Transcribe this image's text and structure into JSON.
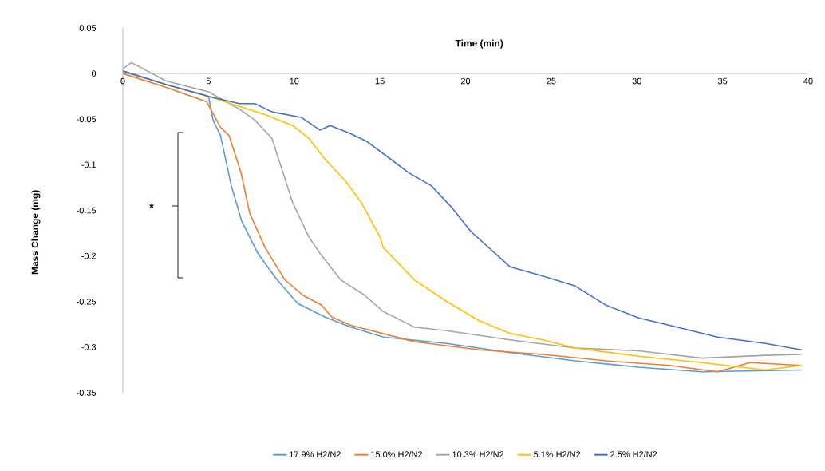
{
  "chart_data": {
    "type": "line",
    "xlabel": "Time (min)",
    "ylabel": "Mass Change (mg)",
    "xlim": [
      0,
      40
    ],
    "ylim": [
      -0.35,
      0.05
    ],
    "xticks": [
      0,
      5,
      10,
      15,
      20,
      25,
      30,
      35,
      40
    ],
    "yticks": [
      0.05,
      0,
      -0.05,
      -0.1,
      -0.15,
      -0.2,
      -0.25,
      -0.3,
      -0.35
    ],
    "grid": false,
    "legend": "bottom",
    "marker": "none",
    "line_style": "solid",
    "annotations": [
      "*"
    ],
    "series": [
      {
        "name": "17.9% H2/N2",
        "color": "#5b9bd5",
        "x": [
          0,
          2.5,
          5,
          5.26,
          5.7,
          6.33,
          6.94,
          7.87,
          8.99,
          10.2,
          11.8,
          13.3,
          15.2,
          18.9,
          22.6,
          26.4,
          30.1,
          33.8,
          39.6
        ],
        "values": [
          0.002,
          -0.012,
          -0.025,
          -0.051,
          -0.068,
          -0.123,
          -0.162,
          -0.197,
          -0.226,
          -0.252,
          -0.267,
          -0.278,
          -0.289,
          -0.296,
          -0.306,
          -0.315,
          -0.322,
          -0.327,
          -0.325
        ]
      },
      {
        "name": "15.0% H2/N2",
        "color": "#ed7d31",
        "x": [
          0,
          2.5,
          4.9,
          5.7,
          6.2,
          6.9,
          7.4,
          8.3,
          9.45,
          10.5,
          11.6,
          12.2,
          13.3,
          17.0,
          20.8,
          24.5,
          28.2,
          31.9,
          34.7,
          36.6,
          39.6
        ],
        "values": [
          0.0,
          -0.015,
          -0.031,
          -0.059,
          -0.068,
          -0.109,
          -0.153,
          -0.191,
          -0.226,
          -0.243,
          -0.254,
          -0.267,
          -0.276,
          -0.294,
          -0.303,
          -0.308,
          -0.315,
          -0.32,
          -0.327,
          -0.317,
          -0.32
        ]
      },
      {
        "name": "10.3% H2/N2",
        "color": "#a5a5a5",
        "x": [
          0,
          0.5,
          2.5,
          5,
          6.8,
          7.7,
          8.7,
          9.3,
          9.9,
          10.85,
          11.5,
          12.7,
          14.1,
          15.2,
          17.0,
          18.9,
          22.6,
          26.4,
          30.1,
          33.8,
          37.5,
          39.6
        ],
        "values": [
          0.005,
          0.012,
          -0.008,
          -0.02,
          -0.039,
          -0.051,
          -0.071,
          -0.106,
          -0.141,
          -0.179,
          -0.197,
          -0.226,
          -0.243,
          -0.261,
          -0.278,
          -0.282,
          -0.292,
          -0.301,
          -0.304,
          -0.312,
          -0.309,
          -0.308
        ]
      },
      {
        "name": "5.1% H2/N2",
        "color": "#ffc000",
        "x": [
          0,
          2.5,
          5,
          6.8,
          8.3,
          9.9,
          10.85,
          11.8,
          13.0,
          13.9,
          15.0,
          15.2,
          17.0,
          18.9,
          20.8,
          22.6,
          24.5,
          26.4,
          30.1,
          33.8,
          37.5,
          39.6
        ],
        "values": [
          0.003,
          -0.012,
          -0.025,
          -0.036,
          -0.045,
          -0.057,
          -0.071,
          -0.094,
          -0.118,
          -0.141,
          -0.179,
          -0.191,
          -0.226,
          -0.25,
          -0.271,
          -0.285,
          -0.292,
          -0.301,
          -0.31,
          -0.317,
          -0.325,
          -0.32
        ]
      },
      {
        "name": "2.5% H2/N2",
        "color": "#4472c4",
        "x": [
          0,
          2.5,
          5,
          6.8,
          7.7,
          8.7,
          10.4,
          11.5,
          12.1,
          13.3,
          14.2,
          15.5,
          16.7,
          18.0,
          19.2,
          20.3,
          22.6,
          24.5,
          26.4,
          28.2,
          30.1,
          31.9,
          34.7,
          37.5,
          39.6
        ],
        "values": [
          0.003,
          -0.012,
          -0.025,
          -0.033,
          -0.033,
          -0.042,
          -0.048,
          -0.062,
          -0.057,
          -0.066,
          -0.074,
          -0.092,
          -0.109,
          -0.123,
          -0.147,
          -0.173,
          -0.212,
          -0.222,
          -0.233,
          -0.254,
          -0.268,
          -0.276,
          -0.289,
          -0.296,
          -0.303
        ]
      }
    ]
  }
}
